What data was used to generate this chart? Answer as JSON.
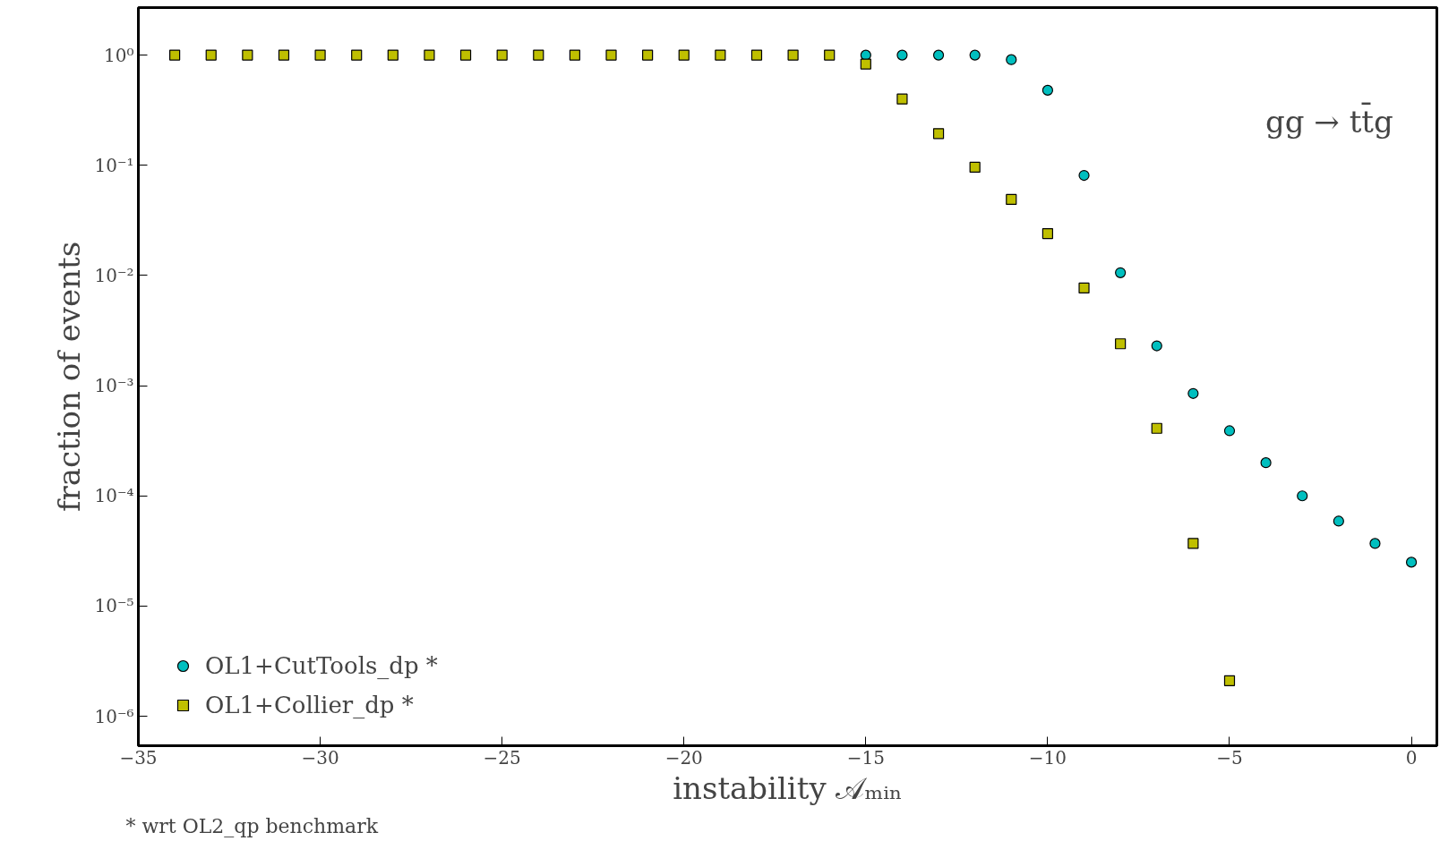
{
  "chart_data": {
    "type": "scatter",
    "xlabel": "instability 𝒜ₘᵢₙ",
    "ylabel": "fraction of events",
    "annotations": [
      "gg → tt̄g",
      "* wrt OL2_qp benchmark"
    ],
    "log": "y",
    "grid": false,
    "legend": "bottom left",
    "xlim": [
      -35,
      0.7
    ],
    "ylim": [
      5.4e-07,
      2.7
    ],
    "xticks": [
      {
        "value": -35,
        "label": "−35"
      },
      {
        "value": -30,
        "label": "−30"
      },
      {
        "value": -25,
        "label": "−25"
      },
      {
        "value": -20,
        "label": "−20"
      },
      {
        "value": -15,
        "label": "−15"
      },
      {
        "value": -10,
        "label": "−10"
      },
      {
        "value": -5,
        "label": "−5"
      },
      {
        "value": 0,
        "label": "0"
      }
    ],
    "yticks": [
      {
        "value": 1,
        "label": "10⁰"
      },
      {
        "value": 0.1,
        "label": "10⁻¹"
      },
      {
        "value": 0.01,
        "label": "10⁻²"
      },
      {
        "value": 0.001,
        "label": "10⁻³"
      },
      {
        "value": 0.0001,
        "label": "10⁻⁴"
      },
      {
        "value": 1e-05,
        "label": "10⁻⁵"
      },
      {
        "value": 1e-06,
        "label": "10⁻⁶"
      }
    ],
    "series": [
      {
        "name": "OL1+CutTools_dp *",
        "color": "#00bfbf",
        "marker": "circle",
        "x": [
          -15,
          -14,
          -13,
          -12,
          -11,
          -10,
          -9,
          -8,
          -7,
          -6,
          -5,
          -4,
          -3,
          -2,
          -1,
          0
        ],
        "values": [
          1.0,
          1.0,
          1.0,
          1.0,
          0.91,
          0.48,
          0.081,
          0.0106,
          0.0023,
          0.00085,
          0.00039,
          0.0002,
          0.0001,
          5.9e-05,
          3.7e-05,
          2.5e-05
        ]
      },
      {
        "name": "OL1+Collier_dp *",
        "color": "#bfbf00",
        "marker": "square",
        "x": [
          -34,
          -33,
          -32,
          -31,
          -30,
          -29,
          -28,
          -27,
          -26,
          -25,
          -24,
          -23,
          -22,
          -21,
          -20,
          -19,
          -18,
          -17,
          -16,
          -15,
          -14,
          -13,
          -12,
          -11,
          -10,
          -9,
          -8,
          -7,
          -6,
          -5
        ],
        "values": [
          1.0,
          1.0,
          1.0,
          1.0,
          1.0,
          1.0,
          1.0,
          1.0,
          1.0,
          1.0,
          1.0,
          1.0,
          1.0,
          1.0,
          1.0,
          1.0,
          1.0,
          1.0,
          1.0,
          0.83,
          0.4,
          0.194,
          0.096,
          0.049,
          0.024,
          0.0077,
          0.0024,
          0.00041,
          3.7e-05,
          2.1e-06
        ]
      }
    ]
  }
}
